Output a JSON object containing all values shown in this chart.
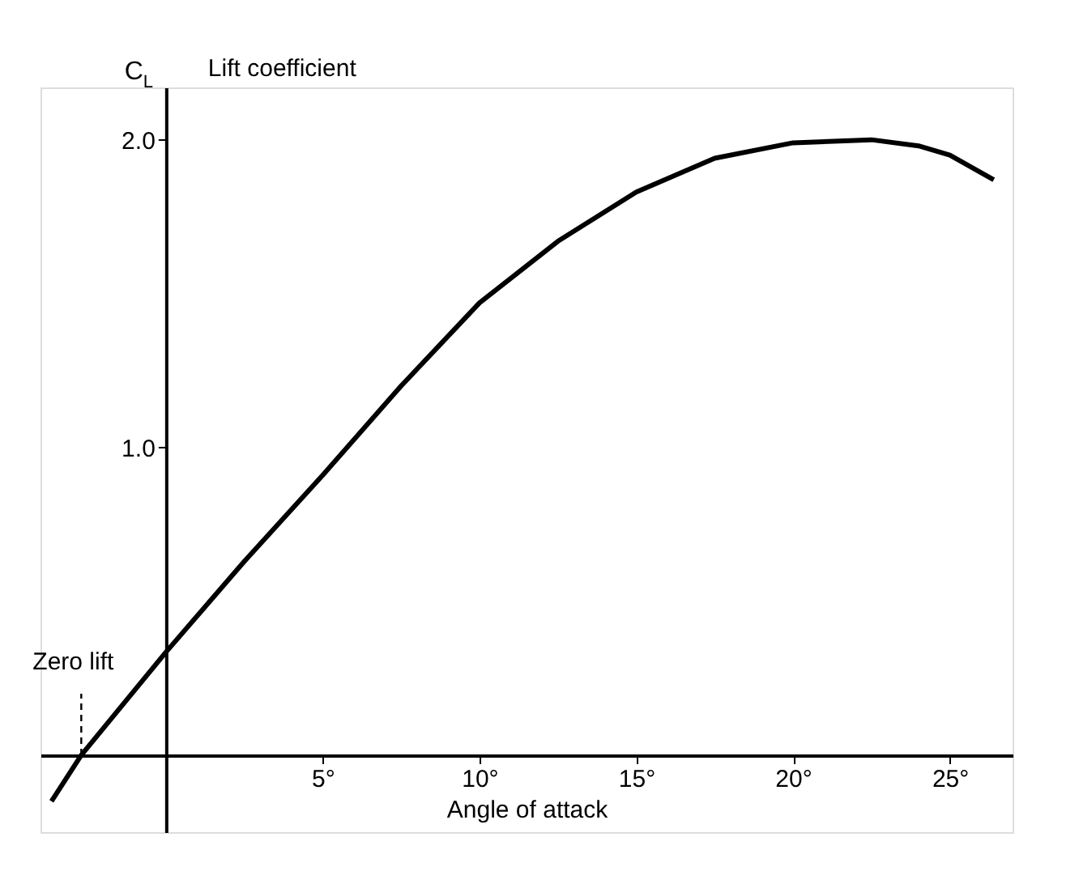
{
  "chart_data": {
    "type": "line",
    "x": [
      -3.65,
      -2.7,
      0,
      2.5,
      5,
      7.5,
      10,
      12.5,
      15,
      17.5,
      20,
      22.5,
      24,
      25,
      26.4
    ],
    "series": [
      {
        "color": "#000000",
        "values": [
          -0.15,
          0,
          0.335,
          0.63,
          0.91,
          1.2,
          1.47,
          1.67,
          1.83,
          1.94,
          1.99,
          2.0,
          1.98,
          1.95,
          1.87
        ]
      }
    ],
    "xlim": [
      -4,
      27
    ],
    "ylim": [
      -0.25,
      2.17
    ],
    "xticks": [
      {
        "value": 5,
        "label": "5°"
      },
      {
        "value": 10,
        "label": "10°"
      },
      {
        "value": 15,
        "label": "15°"
      },
      {
        "value": 20,
        "label": "20°"
      },
      {
        "value": 25,
        "label": "25°"
      }
    ],
    "yticks": [
      {
        "value": 1,
        "label": "1.0"
      },
      {
        "value": 2,
        "label": "2.0"
      }
    ],
    "xlabel": "Angle of attack",
    "ylabel": "C$_{L}$",
    "annotations": [
      "Lift coefficient",
      {
        "text": "Zero lift",
        "x": -2.7,
        "y": 0
      }
    ],
    "grid": false,
    "marker": "none",
    "line_style": "solid"
  }
}
